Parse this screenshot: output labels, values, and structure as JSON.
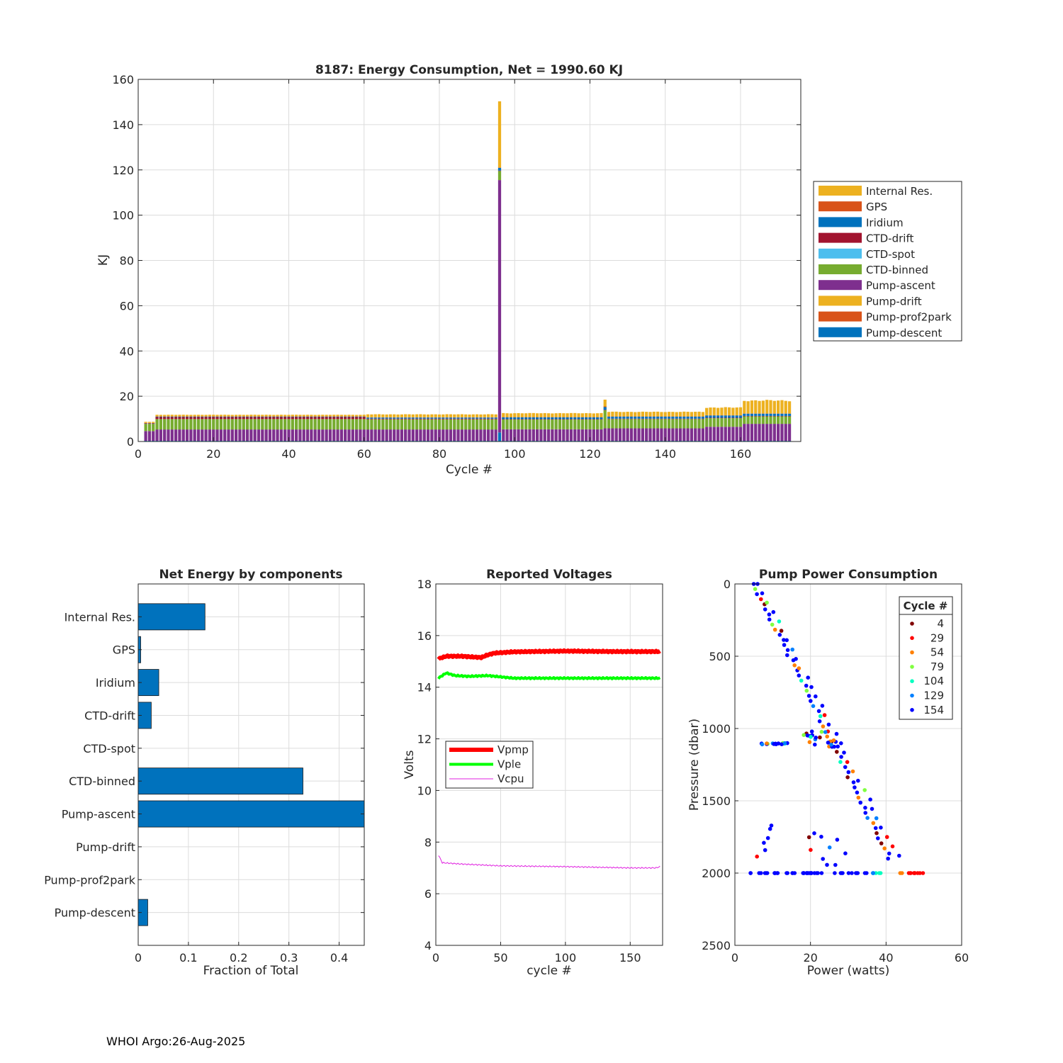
{
  "chart_data": [
    {
      "type": "bar",
      "stacked": true,
      "title": "8187: Energy Consumption,  Net = 1990.60 KJ",
      "xlabel": "Cycle #",
      "ylabel": "KJ",
      "xlim": [
        0,
        176
      ],
      "ylim": [
        0,
        160
      ],
      "xticks": [
        0,
        20,
        40,
        60,
        80,
        100,
        120,
        140,
        160
      ],
      "yticks": [
        0,
        20,
        40,
        60,
        80,
        100,
        120,
        140,
        160
      ],
      "grid": true,
      "legend_position": "right",
      "legend": [
        "Internal Res.",
        "GPS",
        "Iridium",
        "CTD-drift",
        "CTD-spot",
        "CTD-binned",
        "Pump-ascent",
        "Pump-drift",
        "Pump-prof2park",
        "Pump-descent"
      ],
      "colors": {
        "Internal Res.": "#EDB120",
        "GPS": "#D95319",
        "Iridium": "#0072BD",
        "CTD-drift": "#A2142F",
        "CTD-spot": "#4DBEEE",
        "CTD-binned": "#77AC30",
        "Pump-ascent": "#7E2F8E",
        "Pump-drift": "#EDB120",
        "Pump-prof2park": "#D95319",
        "Pump-descent": "#0072BD"
      },
      "cycles_first": 2,
      "cycles_last": 173,
      "segments": [
        {
          "from": 2,
          "to": 4,
          "values": {
            "Pump-descent": 0.3,
            "Pump-ascent": 4.3,
            "CTD-binned": 3.2,
            "CTD-drift": 0.2,
            "Iridium": 0.1,
            "GPS": 0.1,
            "Internal Res.": 0.5
          }
        },
        {
          "from": 5,
          "to": 60,
          "values": {
            "Pump-descent": 0.3,
            "Pump-ascent": 5.0,
            "CTD-binned": 4.6,
            "CTD-drift": 0.9,
            "Iridium": 0.2,
            "GPS": 0.1,
            "Internal Res.": 0.7
          }
        },
        {
          "from": 61,
          "to": 95,
          "values": {
            "Pump-descent": 0.3,
            "Pump-ascent": 5.0,
            "CTD-binned": 4.5,
            "CTD-drift": 0.3,
            "Iridium": 0.5,
            "GPS": 0.1,
            "Internal Res.": 1.3
          }
        },
        {
          "from": 96,
          "to": 96,
          "values": {
            "Pump-descent": 4.0,
            "Pump-ascent": 111.5,
            "CTD-binned": 4.0,
            "CTD-drift": 0.2,
            "Iridium": 1.2,
            "GPS": 0.2,
            "Internal Res.": 29.2
          }
        },
        {
          "from": 97,
          "to": 123,
          "values": {
            "Pump-descent": 0.3,
            "Pump-ascent": 5.1,
            "CTD-binned": 4.3,
            "CTD-drift": 0.2,
            "Iridium": 0.8,
            "GPS": 0.1,
            "Internal Res.": 1.7
          }
        },
        {
          "from": 124,
          "to": 124,
          "values": {
            "Pump-descent": 0.3,
            "Pump-ascent": 5.5,
            "CTD-binned": 8.0,
            "CTD-drift": 0.2,
            "Iridium": 1.2,
            "GPS": 0.3,
            "Internal Res.": 3.0
          }
        },
        {
          "from": 125,
          "to": 150,
          "values": {
            "Pump-descent": 0.3,
            "Pump-ascent": 5.5,
            "CTD-binned": 4.1,
            "CTD-drift": 0.2,
            "Iridium": 0.9,
            "GPS": 0.1,
            "Internal Res.": 2.0
          }
        },
        {
          "from": 151,
          "to": 160,
          "values": {
            "Pump-descent": 0.3,
            "Pump-ascent": 6.2,
            "CTD-binned": 3.8,
            "CTD-drift": 0.2,
            "Iridium": 1.0,
            "GPS": 0.1,
            "Internal Res.": 3.4
          }
        },
        {
          "from": 161,
          "to": 173,
          "values": {
            "Pump-descent": 0.3,
            "Pump-ascent": 7.5,
            "CTD-binned": 3.3,
            "CTD-drift": 0.2,
            "Iridium": 1.0,
            "GPS": 0.1,
            "Internal Res.": 5.7
          }
        }
      ]
    },
    {
      "type": "barh",
      "title": "Net Energy by components",
      "xlabel": "Fraction of Total",
      "xlim": [
        0,
        0.45
      ],
      "xticks": [
        0,
        0.1,
        0.2,
        0.3,
        0.4
      ],
      "xtick_labels": [
        "0",
        "0.1",
        "0.2",
        "0.3",
        "0.4"
      ],
      "categories": [
        "Internal Res.",
        "GPS",
        "Iridium",
        "CTD-drift",
        "CTD-spot",
        "CTD-binned",
        "Pump-ascent",
        "Pump-drift",
        "Pump-prof2park",
        "Pump-descent"
      ],
      "values": [
        0.133,
        0.005,
        0.041,
        0.026,
        0.0,
        0.328,
        0.45,
        0.0,
        0.0,
        0.019
      ],
      "color": "#0072BD"
    },
    {
      "type": "line",
      "title": "Reported Voltages",
      "xlabel": "cycle #",
      "ylabel": "Volts",
      "xlim": [
        0,
        175
      ],
      "ylim": [
        4,
        18
      ],
      "xticks": [
        0,
        50,
        100,
        150
      ],
      "yticks": [
        4,
        6,
        8,
        10,
        12,
        14,
        16,
        18
      ],
      "legend_position": "left",
      "series": [
        {
          "name": "Vpmp",
          "color": "#FF0000",
          "x": [
            2,
            8,
            20,
            35,
            40,
            45,
            60,
            100,
            140,
            173
          ],
          "values": [
            15.1,
            15.2,
            15.2,
            15.15,
            15.25,
            15.32,
            15.37,
            15.4,
            15.38,
            15.38
          ]
        },
        {
          "name": "Vple",
          "color": "#00FF00",
          "x": [
            2,
            8,
            15,
            25,
            40,
            60,
            80,
            100,
            120,
            140,
            173
          ],
          "values": [
            14.35,
            14.55,
            14.45,
            14.42,
            14.45,
            14.35,
            14.35,
            14.35,
            14.35,
            14.35,
            14.35
          ]
        },
        {
          "name": "Vcpu",
          "color": "#E020E0",
          "x": [
            2,
            5,
            20,
            50,
            100,
            150,
            170,
            173
          ],
          "values": [
            7.5,
            7.2,
            7.15,
            7.08,
            7.05,
            7.0,
            7.0,
            7.05
          ]
        }
      ]
    },
    {
      "type": "scatter",
      "title": "Pump Power Consumption",
      "xlabel": "Power (watts)",
      "ylabel": "Pressure (dbar)",
      "xlim": [
        0,
        60
      ],
      "ylim": [
        0,
        2500
      ],
      "y_reversed": true,
      "xticks": [
        0,
        20,
        40,
        60
      ],
      "yticks": [
        0,
        500,
        1000,
        1500,
        2000,
        2500
      ],
      "legend_title": "Cycle #",
      "legend_position": "top-right",
      "legend": [
        {
          "label": "4",
          "color": "#800000"
        },
        {
          "label": "29",
          "color": "#FF0000"
        },
        {
          "label": "54",
          "color": "#FF8000"
        },
        {
          "label": "79",
          "color": "#80FF40"
        },
        {
          "label": "104",
          "color": "#00FFC0"
        },
        {
          "label": "129",
          "color": "#0080FF"
        },
        {
          "label": "154",
          "color": "#0000FF"
        }
      ],
      "groups": [
        {
          "name": "ascent-line",
          "x_start": 5,
          "x_end": 41,
          "y_start": 0,
          "y_end": 1900,
          "n": 55
        },
        {
          "name": "ascent-line-2",
          "x_start": 6,
          "x_end": 43,
          "y_start": 0,
          "y_end": 1880,
          "n": 30
        },
        {
          "name": "bottom-row",
          "x_start": 4,
          "x_end": 50,
          "y_start": 2000,
          "y_end": 2000,
          "n": 60
        },
        {
          "name": "mid-cluster-left",
          "x_start": 6.5,
          "x_end": 15,
          "y_start": 1100,
          "y_end": 1110,
          "n": 16
        },
        {
          "name": "mid-cluster-right",
          "x_start": 18,
          "x_end": 28,
          "y_start": 1020,
          "y_end": 1130,
          "n": 22
        },
        {
          "name": "scattered-low",
          "x_start": 4,
          "x_end": 36,
          "y_start": 1650,
          "y_end": 1950,
          "n": 16
        }
      ]
    }
  ],
  "footer": "WHOI Argo:26-Aug-2025"
}
